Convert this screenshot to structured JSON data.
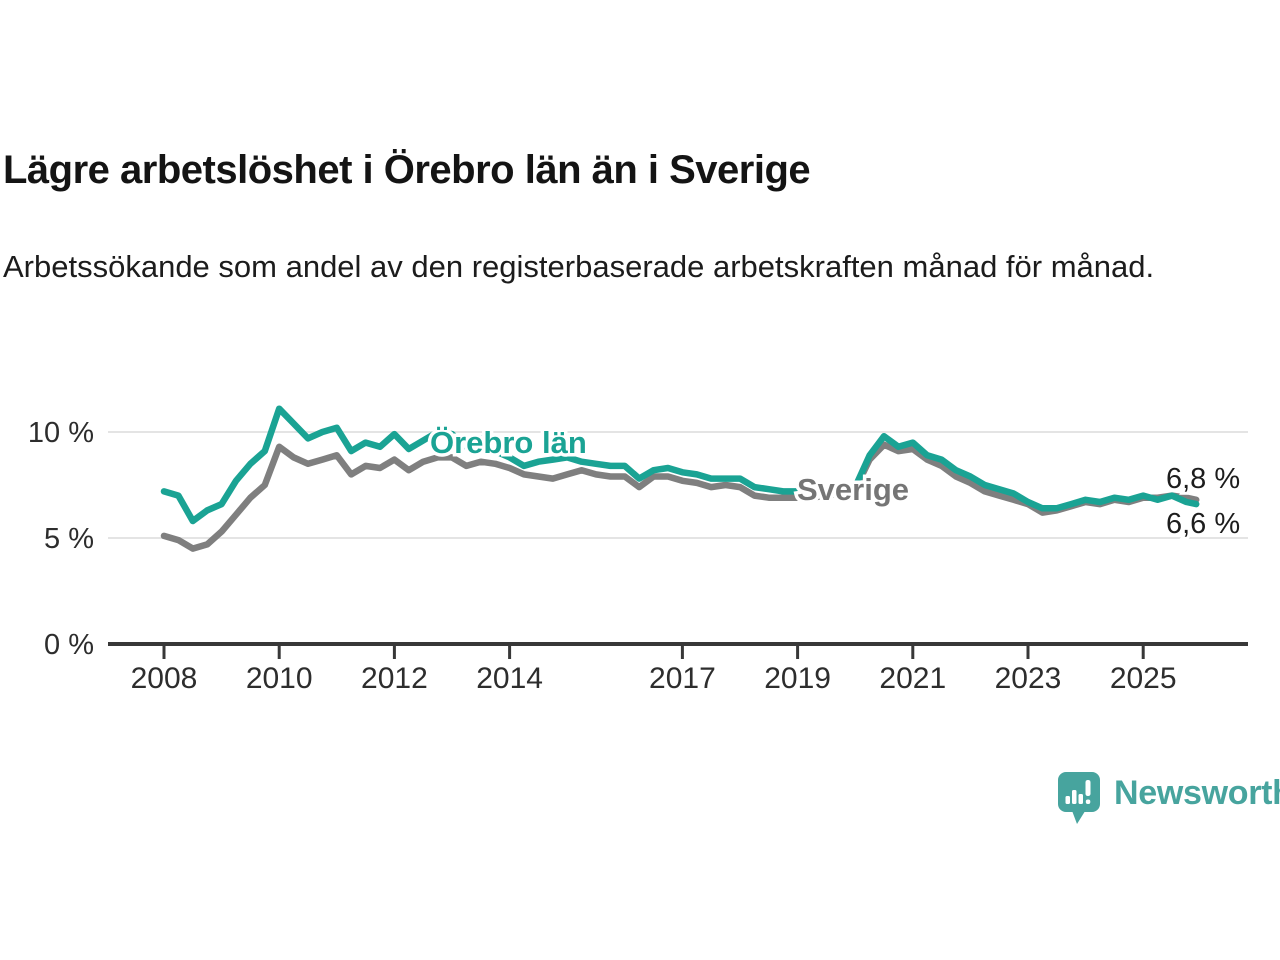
{
  "header": {
    "title": "Lägre arbetslöshet i Örebro län än i Sverige",
    "subtitle": "Arbetssökande som andel av den registerbaserade arbetskraften månad för månad."
  },
  "chart_data": {
    "type": "line",
    "title": "Lägre arbetslöshet i Örebro län än i Sverige",
    "subtitle": "Arbetssökande som andel av den registerbaserade arbetskraften månad för månad.",
    "x_unit": "year",
    "x": [
      2008.0,
      2008.25,
      2008.5,
      2008.75,
      2009.0,
      2009.25,
      2009.5,
      2009.75,
      2010.0,
      2010.25,
      2010.5,
      2010.75,
      2011.0,
      2011.25,
      2011.5,
      2011.75,
      2012.0,
      2012.25,
      2012.5,
      2012.75,
      2013.0,
      2013.25,
      2013.5,
      2013.75,
      2014.0,
      2014.25,
      2014.5,
      2014.75,
      2015.0,
      2015.25,
      2015.5,
      2015.75,
      2016.0,
      2016.25,
      2016.5,
      2016.75,
      2017.0,
      2017.25,
      2017.5,
      2017.75,
      2018.0,
      2018.25,
      2018.5,
      2018.75,
      2019.0,
      2019.25,
      2019.5,
      2019.75,
      2020.0,
      2020.25,
      2020.5,
      2020.75,
      2021.0,
      2021.25,
      2021.5,
      2021.75,
      2022.0,
      2022.25,
      2022.5,
      2022.75,
      2023.0,
      2023.25,
      2023.5,
      2023.75,
      2024.0,
      2024.25,
      2024.5,
      2024.75,
      2025.0,
      2025.25,
      2025.5,
      2025.75,
      2025.92
    ],
    "series": [
      {
        "name": "Örebro län",
        "color": "#1aa394",
        "final_value": 6.6,
        "end_label": "6,6 %",
        "values": [
          7.2,
          7.0,
          5.8,
          6.3,
          6.6,
          7.7,
          8.5,
          9.1,
          11.1,
          10.4,
          9.7,
          10.0,
          10.2,
          9.1,
          9.5,
          9.3,
          9.9,
          9.2,
          9.6,
          10.0,
          9.9,
          9.3,
          9.7,
          9.1,
          8.8,
          8.4,
          8.6,
          8.7,
          8.8,
          8.6,
          8.5,
          8.4,
          8.4,
          7.8,
          8.2,
          8.3,
          8.1,
          8.0,
          7.8,
          7.8,
          7.8,
          7.4,
          7.3,
          7.2,
          7.2,
          7.0,
          7.1,
          7.2,
          7.4,
          8.9,
          9.8,
          9.3,
          9.5,
          8.9,
          8.7,
          8.2,
          7.9,
          7.5,
          7.3,
          7.1,
          6.7,
          6.4,
          6.4,
          6.6,
          6.8,
          6.7,
          6.9,
          6.8,
          7.0,
          6.8,
          7.0,
          6.7,
          6.6
        ]
      },
      {
        "name": "Sverige",
        "color": "#7f7f7f",
        "final_value": 6.8,
        "end_label": "6,8 %",
        "values": [
          5.1,
          4.9,
          4.5,
          4.7,
          5.3,
          6.1,
          6.9,
          7.5,
          9.3,
          8.8,
          8.5,
          8.7,
          8.9,
          8.0,
          8.4,
          8.3,
          8.7,
          8.2,
          8.6,
          8.8,
          8.8,
          8.4,
          8.6,
          8.5,
          8.3,
          8.0,
          7.9,
          7.8,
          8.0,
          8.2,
          8.0,
          7.9,
          7.9,
          7.4,
          7.9,
          7.9,
          7.7,
          7.6,
          7.4,
          7.5,
          7.4,
          7.0,
          6.9,
          6.9,
          6.9,
          6.9,
          7.0,
          7.1,
          7.3,
          8.7,
          9.4,
          9.1,
          9.2,
          8.7,
          8.4,
          7.9,
          7.6,
          7.2,
          7.0,
          6.8,
          6.6,
          6.2,
          6.3,
          6.5,
          6.7,
          6.6,
          6.8,
          6.7,
          6.9,
          6.9,
          7.0,
          6.9,
          6.8
        ]
      }
    ],
    "yticks": [
      {
        "value": 0,
        "label": "0 %"
      },
      {
        "value": 5,
        "label": "5 %"
      },
      {
        "value": 10,
        "label": "10 %"
      }
    ],
    "xticks": [
      {
        "value": 2008,
        "label": "2008"
      },
      {
        "value": 2010,
        "label": "2010"
      },
      {
        "value": 2012,
        "label": "2012"
      },
      {
        "value": 2014,
        "label": "2014"
      },
      {
        "value": 2017,
        "label": "2017"
      },
      {
        "value": 2019,
        "label": "2019"
      },
      {
        "value": 2021,
        "label": "2021"
      },
      {
        "value": 2023,
        "label": "2023"
      },
      {
        "value": 2025,
        "label": "2025"
      }
    ],
    "ylim": [
      0,
      11.6
    ],
    "xlim": [
      2007.0,
      2026.6
    ],
    "grid": "horizontal",
    "legend": "inline labels on lines"
  },
  "branding": {
    "logo_text": "Newsworthy"
  },
  "colors": {
    "accent_teal": "#1aa394",
    "series_gray": "#7f7f7f",
    "logo_teal": "#47a49e",
    "axis": "#383838",
    "tick_text": "#2d2d2d",
    "gridline": "#e4e4e4",
    "value_label_text": "#1d1d1d",
    "background": "#ffffff"
  }
}
